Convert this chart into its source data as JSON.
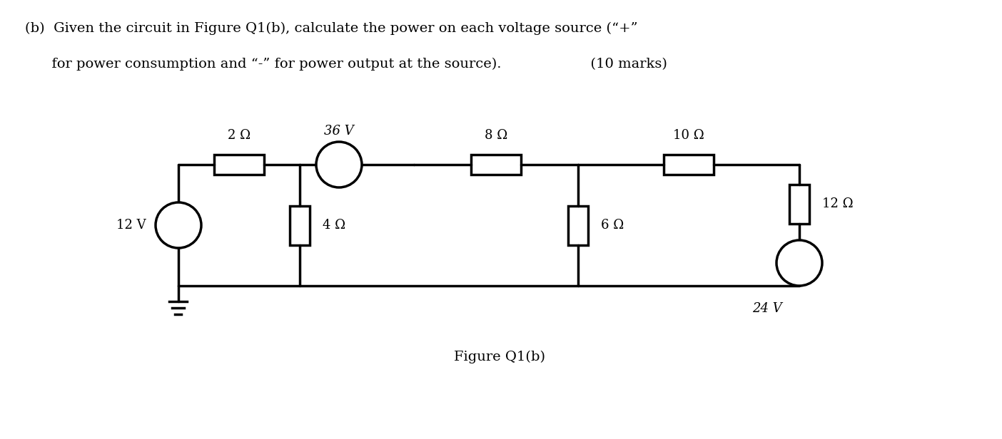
{
  "title_text": "(b)  Given the circuit in Figure Q1(b), calculate the power on each voltage source (“+”\n     for power consumption and “-” for power output at the source).                    (10 marks)",
  "figure_label": "Figure Q1(b)",
  "background_color": "#ffffff",
  "line_color": "#000000",
  "line_width": 2.5,
  "resistor_2": "2 Ω",
  "resistor_8": "8 Ω",
  "resistor_10": "10 Ω",
  "resistor_4": "4 Ω",
  "resistor_6": "6 Ω",
  "resistor_12": "12 Ω",
  "source_12v": "12 V",
  "source_36v": "36 V",
  "source_24v": "24 V",
  "ground_symbol": true
}
